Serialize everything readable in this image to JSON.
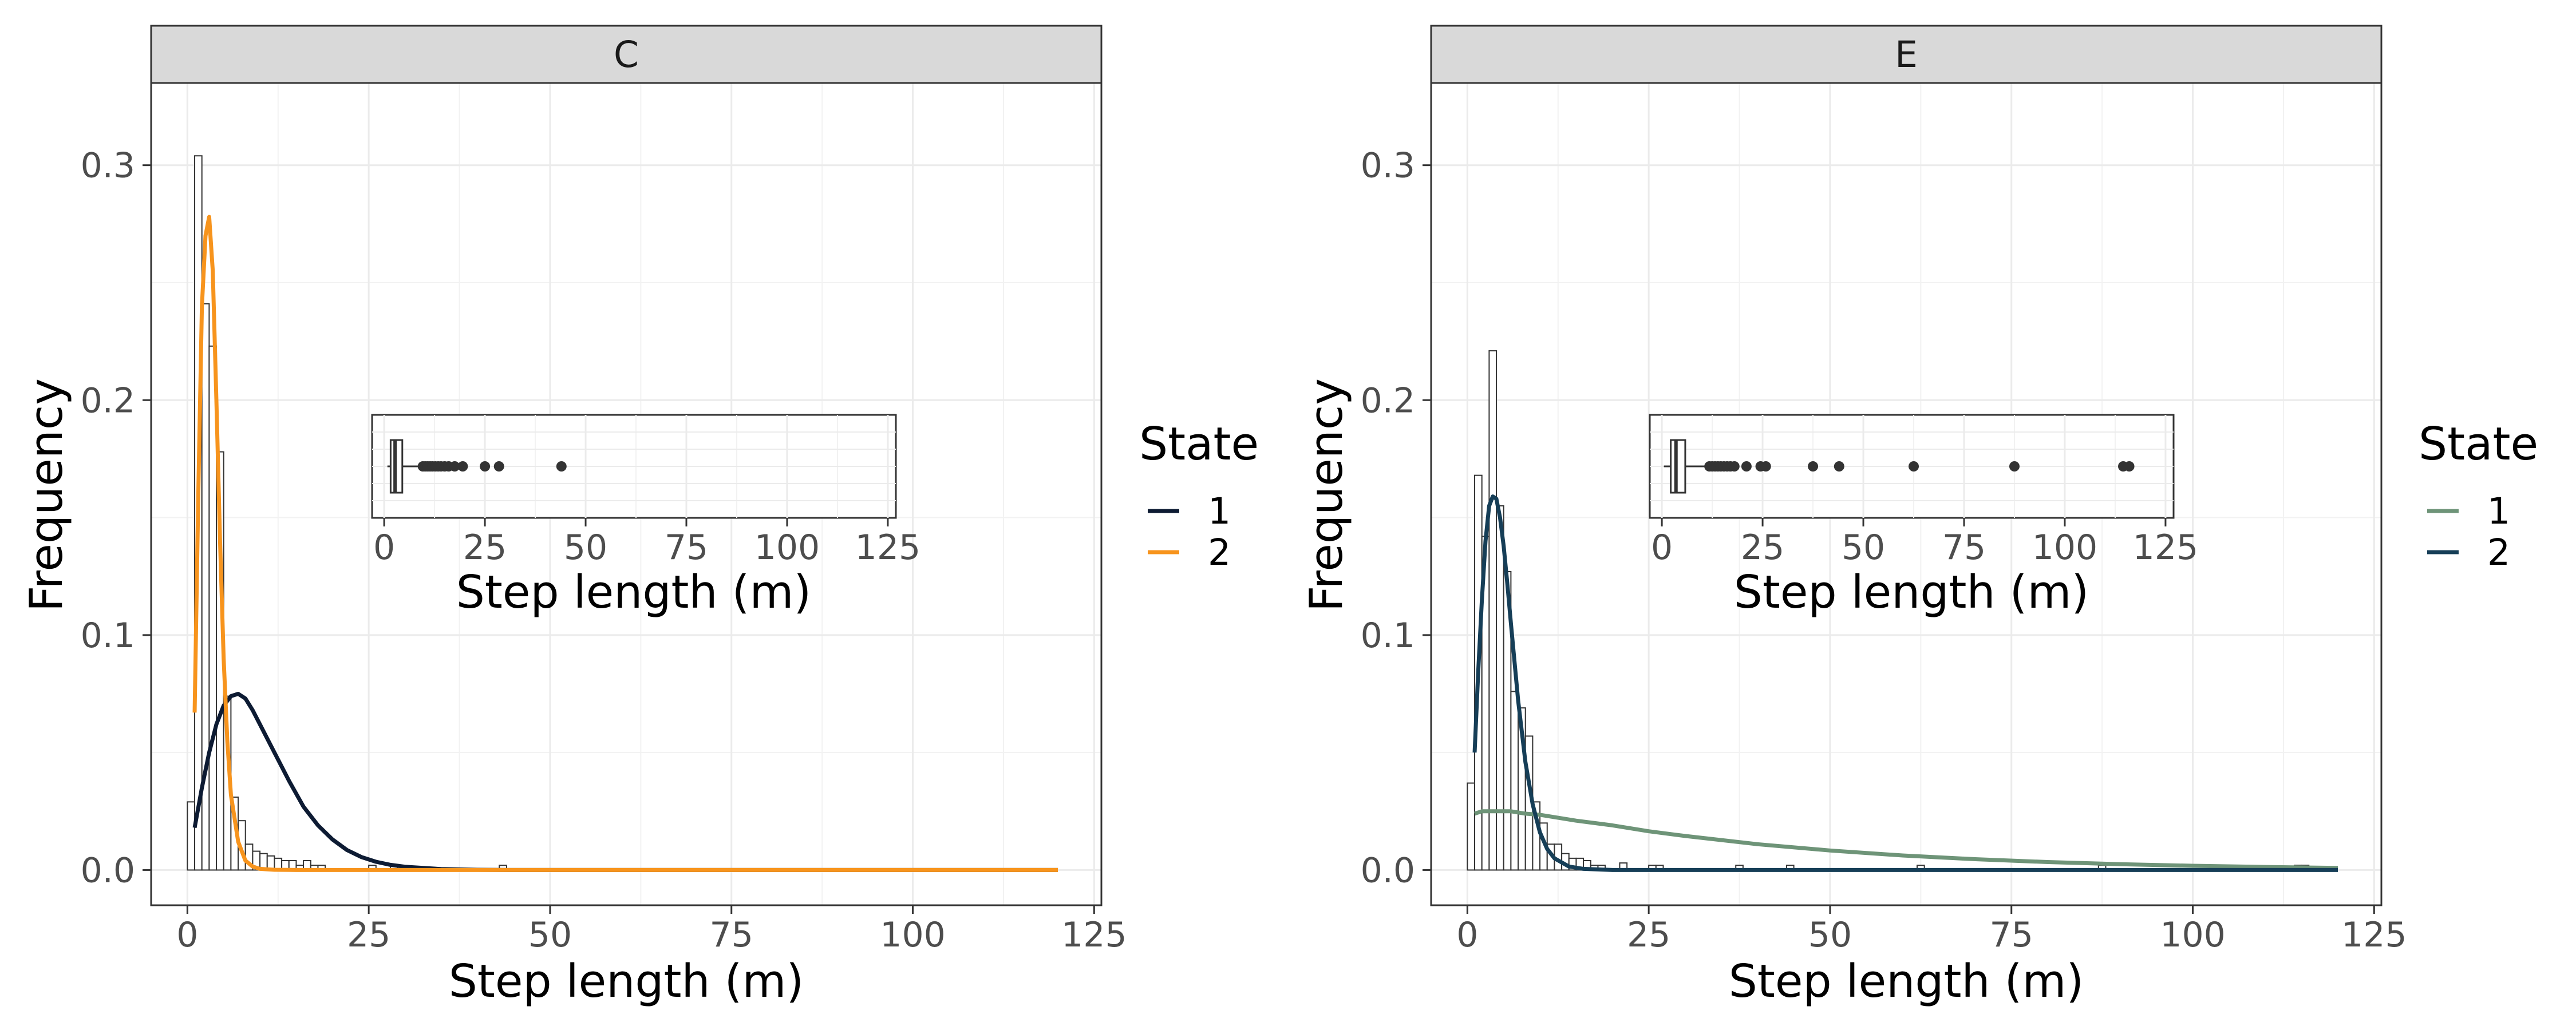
{
  "chart_data": [
    {
      "type": "histogram",
      "panel": "C",
      "xlabel": "Step length (m)",
      "ylabel": "Frequency",
      "xlim": [
        -5,
        126
      ],
      "ylim": [
        -0.015,
        0.335
      ],
      "x_ticks": [
        0,
        25,
        50,
        75,
        100,
        125
      ],
      "y_ticks": [
        0.0,
        0.1,
        0.2,
        0.3
      ],
      "y_tick_labels": [
        "0.0",
        "0.1",
        "0.2",
        "0.3"
      ],
      "grid": true,
      "bin_width": 1,
      "histogram_bins": [
        {
          "x": 0,
          "y": 0.029
        },
        {
          "x": 1,
          "y": 0.304
        },
        {
          "x": 2,
          "y": 0.241
        },
        {
          "x": 3,
          "y": 0.223
        },
        {
          "x": 4,
          "y": 0.178
        },
        {
          "x": 5,
          "y": 0.074
        },
        {
          "x": 6,
          "y": 0.031
        },
        {
          "x": 7,
          "y": 0.021
        },
        {
          "x": 8,
          "y": 0.011
        },
        {
          "x": 9,
          "y": 0.008
        },
        {
          "x": 10,
          "y": 0.007
        },
        {
          "x": 11,
          "y": 0.006
        },
        {
          "x": 12,
          "y": 0.005
        },
        {
          "x": 13,
          "y": 0.004
        },
        {
          "x": 14,
          "y": 0.004
        },
        {
          "x": 15,
          "y": 0.002
        },
        {
          "x": 16,
          "y": 0.004
        },
        {
          "x": 17,
          "y": 0.002
        },
        {
          "x": 18,
          "y": 0.002
        },
        {
          "x": 25,
          "y": 0.002
        },
        {
          "x": 28,
          "y": 0.002
        },
        {
          "x": 43,
          "y": 0.002
        }
      ],
      "legend": {
        "title": "State",
        "position": "right"
      },
      "series": [
        {
          "name": "1",
          "color": "#0d1b33",
          "x": [
            1,
            2,
            3,
            4,
            5,
            6,
            7,
            8,
            9,
            10,
            12,
            14,
            16,
            18,
            20,
            22,
            24,
            26,
            28,
            30,
            35,
            40,
            45,
            50,
            60,
            80,
            100,
            120
          ],
          "y": [
            0.018,
            0.035,
            0.05,
            0.062,
            0.07,
            0.074,
            0.075,
            0.073,
            0.068,
            0.062,
            0.05,
            0.038,
            0.027,
            0.019,
            0.013,
            0.0085,
            0.0055,
            0.0035,
            0.0022,
            0.0014,
            0.0004,
            0.0001,
            0.0,
            0.0,
            0.0,
            0.0,
            0.0,
            0.0
          ]
        },
        {
          "name": "2",
          "color": "#f7941d",
          "x": [
            1,
            1.5,
            2,
            2.5,
            3,
            3.5,
            4,
            4.5,
            5,
            5.5,
            6,
            7,
            8,
            9,
            10,
            12,
            15,
            20,
            30,
            60,
            120
          ],
          "y": [
            0.067,
            0.16,
            0.24,
            0.27,
            0.278,
            0.255,
            0.2,
            0.14,
            0.09,
            0.055,
            0.032,
            0.012,
            0.004,
            0.0015,
            0.0005,
            0.0001,
            0.0,
            0.0,
            0.0,
            0.0,
            0.0
          ]
        }
      ],
      "inset": {
        "type": "boxplot",
        "xlabel": "Step length (m)",
        "xlim": [
          -3,
          127
        ],
        "x_ticks": [
          0,
          25,
          50,
          75,
          100,
          125
        ],
        "lower_whisker": 0.8,
        "q1": 1.6,
        "median": 2.7,
        "q3": 4.5,
        "upper_whisker": 9.0,
        "outliers": [
          9.6,
          10.2,
          10.8,
          11.4,
          12,
          12.7,
          13.4,
          14.1,
          15,
          16,
          17.5,
          19.5,
          25,
          28.5,
          44
        ]
      }
    },
    {
      "type": "histogram",
      "panel": "E",
      "xlabel": "Step length (m)",
      "ylabel": "Frequency",
      "xlim": [
        -5,
        126
      ],
      "ylim": [
        -0.015,
        0.335
      ],
      "x_ticks": [
        0,
        25,
        50,
        75,
        100,
        125
      ],
      "y_ticks": [
        0.0,
        0.1,
        0.2,
        0.3
      ],
      "y_tick_labels": [
        "0.0",
        "0.1",
        "0.2",
        "0.3"
      ],
      "grid": true,
      "bin_width": 1,
      "histogram_bins": [
        {
          "x": 0,
          "y": 0.037
        },
        {
          "x": 1,
          "y": 0.168
        },
        {
          "x": 2,
          "y": 0.142
        },
        {
          "x": 3,
          "y": 0.221
        },
        {
          "x": 4,
          "y": 0.155
        },
        {
          "x": 5,
          "y": 0.127
        },
        {
          "x": 6,
          "y": 0.076
        },
        {
          "x": 7,
          "y": 0.069
        },
        {
          "x": 8,
          "y": 0.057
        },
        {
          "x": 9,
          "y": 0.029
        },
        {
          "x": 10,
          "y": 0.02
        },
        {
          "x": 11,
          "y": 0.011
        },
        {
          "x": 12,
          "y": 0.011
        },
        {
          "x": 13,
          "y": 0.007
        },
        {
          "x": 14,
          "y": 0.005
        },
        {
          "x": 15,
          "y": 0.005
        },
        {
          "x": 16,
          "y": 0.004
        },
        {
          "x": 17,
          "y": 0.002
        },
        {
          "x": 18,
          "y": 0.002
        },
        {
          "x": 21,
          "y": 0.003
        },
        {
          "x": 25,
          "y": 0.002
        },
        {
          "x": 26,
          "y": 0.002
        },
        {
          "x": 37,
          "y": 0.002
        },
        {
          "x": 44,
          "y": 0.002
        },
        {
          "x": 62,
          "y": 0.002
        },
        {
          "x": 87,
          "y": 0.002
        },
        {
          "x": 114,
          "y": 0.002
        },
        {
          "x": 115,
          "y": 0.002
        }
      ],
      "legend": {
        "title": "State",
        "position": "right"
      },
      "series": [
        {
          "name": "1",
          "color": "#6e9478",
          "x": [
            1,
            2,
            4,
            6,
            8,
            10,
            15,
            20,
            25,
            30,
            40,
            50,
            60,
            70,
            80,
            90,
            100,
            110,
            120
          ],
          "y": [
            0.024,
            0.025,
            0.025,
            0.025,
            0.024,
            0.0235,
            0.021,
            0.019,
            0.0165,
            0.0145,
            0.011,
            0.0083,
            0.0062,
            0.0046,
            0.0034,
            0.0025,
            0.0018,
            0.0013,
            0.0009
          ]
        },
        {
          "name": "2",
          "color": "#163e57",
          "x": [
            1,
            1.5,
            2,
            2.5,
            3,
            3.5,
            4,
            4.5,
            5,
            5.5,
            6,
            7,
            8,
            9,
            10,
            11,
            12,
            14,
            16,
            20,
            30,
            60,
            120
          ],
          "y": [
            0.05,
            0.085,
            0.115,
            0.14,
            0.155,
            0.159,
            0.158,
            0.15,
            0.138,
            0.122,
            0.105,
            0.072,
            0.046,
            0.028,
            0.016,
            0.009,
            0.005,
            0.0015,
            0.0005,
            0.0,
            0.0,
            0.0,
            0.0
          ]
        }
      ],
      "inset": {
        "type": "boxplot",
        "xlabel": "Step length (m)",
        "xlim": [
          -3,
          127
        ],
        "x_ticks": [
          0,
          25,
          50,
          75,
          100,
          125
        ],
        "lower_whisker": 0.5,
        "q1": 2.2,
        "median": 3.5,
        "q3": 5.8,
        "upper_whisker": 11.0,
        "outliers": [
          11.8,
          12.5,
          13.2,
          13.9,
          14.6,
          15.4,
          16.2,
          17.0,
          18.0,
          21.0,
          24.5,
          25.8,
          37.5,
          44.0,
          62.5,
          87.5,
          114.5,
          116.0
        ]
      }
    }
  ]
}
